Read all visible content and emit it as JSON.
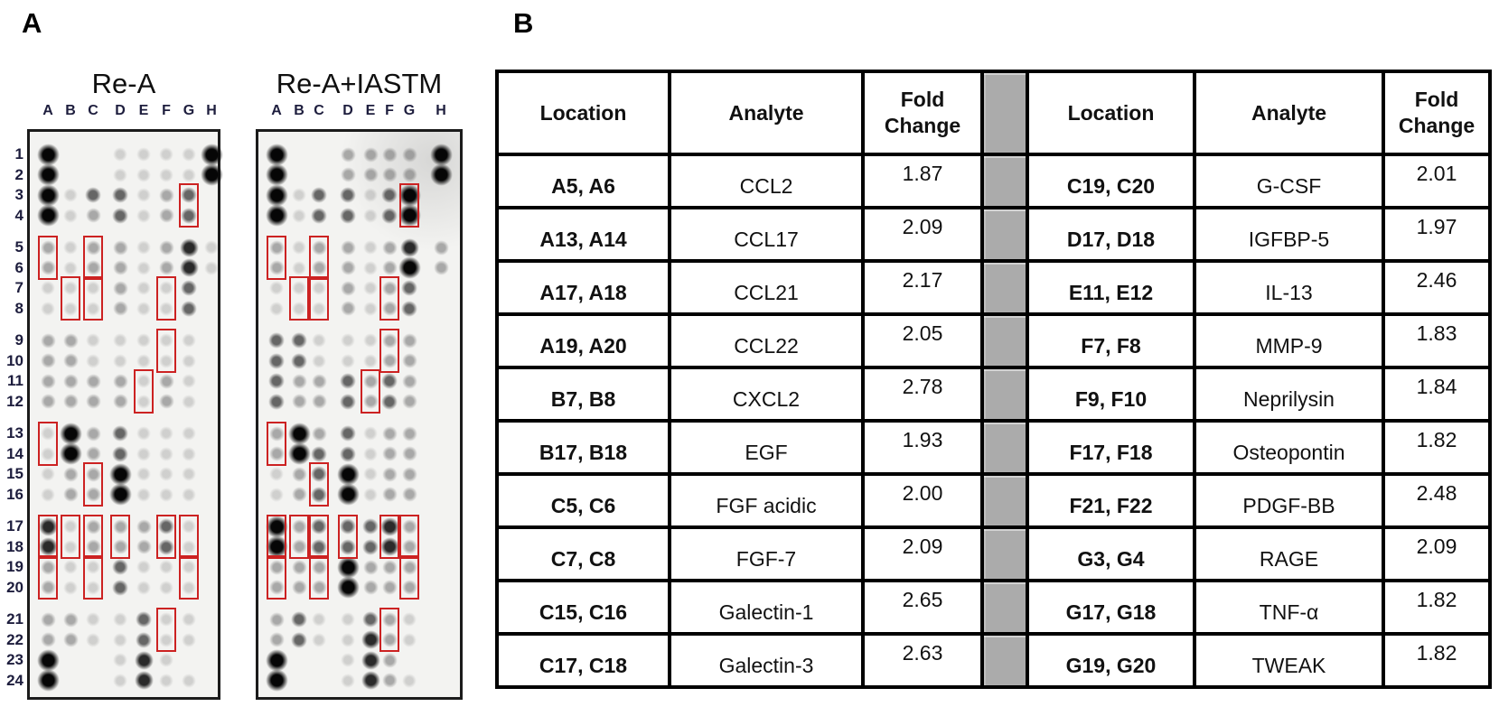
{
  "colors": {
    "highlight_red": "#cc2222",
    "separator_gray": "#ababab",
    "blot_background": "#f3f3f1"
  },
  "panel_a": {
    "label": "A",
    "column_labels": [
      "A",
      "B",
      "C",
      "D",
      "E",
      "F",
      "G",
      "H"
    ],
    "row_labels": [
      "1",
      "2",
      "3",
      "4",
      "5",
      "6",
      "7",
      "8",
      "9",
      "10",
      "11",
      "12",
      "13",
      "14",
      "15",
      "16",
      "17",
      "18",
      "19",
      "20",
      "21",
      "22",
      "23",
      "24"
    ],
    "blots": [
      {
        "title": "Re-A",
        "spot_intensities": [
          [
            5,
            0,
            0,
            1,
            1,
            1,
            1,
            5
          ],
          [
            5,
            0,
            0,
            1,
            1,
            1,
            1,
            5
          ],
          [
            5,
            1,
            3,
            3,
            1,
            2,
            3,
            0
          ],
          [
            5,
            1,
            2,
            3,
            1,
            2,
            3,
            0
          ],
          [
            2,
            1,
            2,
            2,
            1,
            2,
            4,
            1
          ],
          [
            2,
            1,
            2,
            2,
            1,
            2,
            4,
            1
          ],
          [
            1,
            1,
            1,
            2,
            1,
            1,
            3,
            0
          ],
          [
            1,
            1,
            1,
            2,
            1,
            1,
            3,
            0
          ],
          [
            2,
            2,
            1,
            1,
            1,
            1,
            1,
            0
          ],
          [
            2,
            2,
            1,
            1,
            1,
            1,
            1,
            0
          ],
          [
            2,
            2,
            2,
            2,
            1,
            2,
            1,
            0
          ],
          [
            2,
            2,
            2,
            2,
            1,
            2,
            1,
            0
          ],
          [
            1,
            5,
            2,
            3,
            1,
            1,
            1,
            0
          ],
          [
            1,
            5,
            2,
            3,
            1,
            1,
            1,
            0
          ],
          [
            1,
            2,
            2,
            5,
            1,
            1,
            1,
            0
          ],
          [
            1,
            2,
            2,
            5,
            1,
            1,
            1,
            0
          ],
          [
            4,
            1,
            2,
            2,
            2,
            3,
            1,
            0
          ],
          [
            4,
            1,
            2,
            2,
            2,
            3,
            1,
            0
          ],
          [
            2,
            1,
            1,
            3,
            1,
            1,
            1,
            0
          ],
          [
            2,
            1,
            1,
            3,
            1,
            1,
            1,
            0
          ],
          [
            2,
            2,
            1,
            1,
            3,
            1,
            1,
            0
          ],
          [
            2,
            2,
            1,
            1,
            3,
            1,
            1,
            0
          ],
          [
            5,
            0,
            0,
            1,
            4,
            1,
            0,
            0
          ],
          [
            5,
            0,
            0,
            1,
            4,
            1,
            1,
            0
          ]
        ]
      },
      {
        "title": "Re-A+IASTM",
        "spot_intensities": [
          [
            5,
            0,
            0,
            2,
            2,
            2,
            2,
            5
          ],
          [
            5,
            0,
            0,
            2,
            2,
            2,
            2,
            5
          ],
          [
            5,
            1,
            3,
            3,
            1,
            3,
            5,
            0
          ],
          [
            5,
            1,
            3,
            3,
            1,
            3,
            5,
            0
          ],
          [
            2,
            1,
            2,
            2,
            1,
            2,
            4,
            2
          ],
          [
            2,
            1,
            2,
            2,
            1,
            2,
            5,
            2
          ],
          [
            1,
            1,
            1,
            2,
            1,
            2,
            3,
            0
          ],
          [
            1,
            1,
            1,
            2,
            1,
            2,
            3,
            0
          ],
          [
            3,
            3,
            1,
            1,
            1,
            2,
            2,
            0
          ],
          [
            3,
            3,
            1,
            1,
            1,
            2,
            2,
            0
          ],
          [
            3,
            2,
            2,
            3,
            2,
            3,
            2,
            0
          ],
          [
            3,
            2,
            2,
            3,
            2,
            3,
            2,
            0
          ],
          [
            2,
            5,
            2,
            3,
            1,
            2,
            2,
            0
          ],
          [
            2,
            5,
            3,
            3,
            1,
            2,
            2,
            0
          ],
          [
            1,
            2,
            3,
            5,
            1,
            2,
            2,
            0
          ],
          [
            1,
            2,
            3,
            5,
            1,
            2,
            2,
            0
          ],
          [
            5,
            2,
            3,
            3,
            3,
            4,
            2,
            0
          ],
          [
            5,
            2,
            3,
            3,
            3,
            4,
            2,
            0
          ],
          [
            2,
            2,
            2,
            5,
            2,
            2,
            2,
            0
          ],
          [
            2,
            2,
            2,
            5,
            2,
            2,
            2,
            0
          ],
          [
            2,
            3,
            1,
            1,
            3,
            2,
            1,
            0
          ],
          [
            2,
            3,
            1,
            1,
            4,
            2,
            1,
            0
          ],
          [
            5,
            0,
            0,
            1,
            4,
            2,
            0,
            0
          ],
          [
            5,
            0,
            0,
            1,
            4,
            2,
            1,
            0
          ]
        ]
      }
    ]
  },
  "panel_b": {
    "label": "B",
    "columns": [
      "Location",
      "Analyte",
      "Fold Change"
    ],
    "left_rows": [
      {
        "location": "A5, A6",
        "analyte": "CCL2",
        "fold_change": "1.87"
      },
      {
        "location": "A13, A14",
        "analyte": "CCL17",
        "fold_change": "2.09"
      },
      {
        "location": "A17, A18",
        "analyte": "CCL21",
        "fold_change": "2.17"
      },
      {
        "location": "A19, A20",
        "analyte": "CCL22",
        "fold_change": "2.05"
      },
      {
        "location": "B7, B8",
        "analyte": "CXCL2",
        "fold_change": "2.78"
      },
      {
        "location": "B17, B18",
        "analyte": "EGF",
        "fold_change": "1.93"
      },
      {
        "location": "C5, C6",
        "analyte": "FGF acidic",
        "fold_change": "2.00"
      },
      {
        "location": "C7, C8",
        "analyte": "FGF-7",
        "fold_change": "2.09"
      },
      {
        "location": "C15, C16",
        "analyte": "Galectin-1",
        "fold_change": "2.65"
      },
      {
        "location": "C17, C18",
        "analyte": "Galectin-3",
        "fold_change": "2.63"
      }
    ],
    "right_rows": [
      {
        "location": "C19, C20",
        "analyte": "G-CSF",
        "fold_change": "2.01"
      },
      {
        "location": "D17, D18",
        "analyte": "IGFBP-5",
        "fold_change": "1.97"
      },
      {
        "location": "E11, E12",
        "analyte": "IL-13",
        "fold_change": "2.46"
      },
      {
        "location": "F7, F8",
        "analyte": "MMP-9",
        "fold_change": "1.83"
      },
      {
        "location": "F9, F10",
        "analyte": "Neprilysin",
        "fold_change": "1.84"
      },
      {
        "location": "F17, F18",
        "analyte": "Osteopontin",
        "fold_change": "1.82"
      },
      {
        "location": "F21, F22",
        "analyte": "PDGF-BB",
        "fold_change": "2.48"
      },
      {
        "location": "G3, G4",
        "analyte": "RAGE",
        "fold_change": "2.09"
      },
      {
        "location": "G17, G18",
        "analyte": "TNF-α",
        "fold_change": "1.82"
      },
      {
        "location": "G19, G20",
        "analyte": "TWEAK",
        "fold_change": "1.82"
      }
    ]
  }
}
